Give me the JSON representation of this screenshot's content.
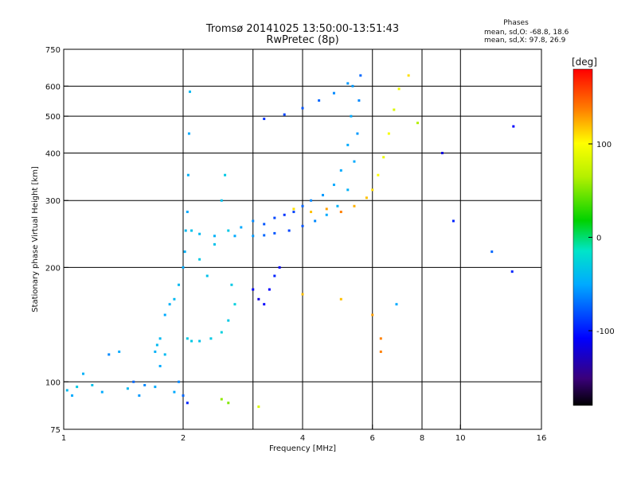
{
  "title_line1": "Tromsø 20141025 13:50:00-13:51:43",
  "title_line2": "RwPretec (8p)",
  "stats": {
    "heading": "Phases",
    "line_o": "mean, sd,O: -68.8, 18.6",
    "line_x": "mean, sd,X:  97.8, 26.9"
  },
  "colorbar": {
    "unit_label": "[deg]",
    "range": [
      -180,
      180
    ],
    "ticks": [
      {
        "value": 100,
        "label": "100"
      },
      {
        "value": 0,
        "label": "0"
      },
      {
        "value": -100,
        "label": "-100"
      }
    ]
  },
  "chart_data": {
    "type": "scatter",
    "title": "Tromsø 20141025 13:50:00-13:51:43",
    "subtitle": "RwPretec (8p)",
    "xlabel": "Frequency [MHz]",
    "ylabel": "Stationary phase Virtual Height [km]",
    "x_scale": "log",
    "y_scale": "log",
    "xlim": [
      1,
      16
    ],
    "ylim": [
      75,
      750
    ],
    "x_ticks": [
      {
        "value": 1,
        "label": "1"
      },
      {
        "value": 2,
        "label": "2"
      },
      {
        "value": 4,
        "label": "4"
      },
      {
        "value": 6,
        "label": "6"
      },
      {
        "value": 8,
        "label": "8"
      },
      {
        "value": 10,
        "label": "10"
      },
      {
        "value": 16,
        "label": "16"
      }
    ],
    "y_ticks": [
      {
        "value": 75,
        "label": "75"
      },
      {
        "value": 100,
        "label": "100"
      },
      {
        "value": 200,
        "label": "200"
      },
      {
        "value": 300,
        "label": "300"
      },
      {
        "value": 400,
        "label": "400"
      },
      {
        "value": 500,
        "label": "500"
      },
      {
        "value": 600,
        "label": "600"
      },
      {
        "value": 750,
        "label": "750"
      }
    ],
    "grid_x": [
      2,
      3,
      4,
      6,
      8,
      10
    ],
    "grid_y": [
      100,
      200,
      300,
      400,
      500,
      600
    ],
    "color_variable": "phase [deg]",
    "series": [
      {
        "points": [
          [
            1.02,
            95,
            -50
          ],
          [
            1.05,
            92,
            -60
          ],
          [
            1.08,
            97,
            -40
          ],
          [
            1.12,
            105,
            -55
          ],
          [
            1.18,
            98,
            -45
          ],
          [
            1.25,
            94,
            -60
          ],
          [
            1.3,
            118,
            -70
          ],
          [
            1.38,
            120,
            -60
          ],
          [
            1.45,
            96,
            -50
          ],
          [
            1.5,
            100,
            -80
          ],
          [
            1.55,
            92,
            -65
          ],
          [
            1.6,
            98,
            -70
          ],
          [
            1.7,
            97,
            -60
          ],
          [
            1.75,
            110,
            -60
          ],
          [
            1.8,
            118,
            -50
          ],
          [
            1.9,
            94,
            -60
          ],
          [
            1.95,
            100,
            -70
          ],
          [
            2.0,
            92,
            -80
          ],
          [
            2.05,
            88,
            -100
          ]
        ]
      },
      {
        "points": [
          [
            1.7,
            120,
            -55
          ],
          [
            1.72,
            125,
            -50
          ],
          [
            1.75,
            130,
            -50
          ],
          [
            1.8,
            150,
            -60
          ],
          [
            1.85,
            160,
            -55
          ],
          [
            1.9,
            165,
            -50
          ],
          [
            1.95,
            180,
            -50
          ],
          [
            2.0,
            200,
            -60
          ],
          [
            2.02,
            220,
            -55
          ],
          [
            2.03,
            250,
            -50
          ],
          [
            2.05,
            280,
            -60
          ],
          [
            2.06,
            350,
            -55
          ],
          [
            2.07,
            450,
            -60
          ],
          [
            2.08,
            580,
            -50
          ]
        ]
      },
      {
        "points": [
          [
            2.05,
            130,
            -40
          ],
          [
            2.1,
            128,
            -40
          ],
          [
            2.2,
            128,
            -45
          ],
          [
            2.35,
            130,
            -40
          ],
          [
            2.5,
            135,
            -35
          ],
          [
            2.6,
            145,
            -40
          ],
          [
            2.7,
            160,
            -35
          ],
          [
            2.65,
            180,
            -40
          ],
          [
            2.3,
            190,
            -45
          ],
          [
            2.2,
            210,
            -40
          ],
          [
            2.4,
            230,
            -45
          ],
          [
            2.6,
            250,
            -40
          ],
          [
            2.5,
            300,
            -45
          ],
          [
            2.55,
            350,
            -40
          ]
        ]
      },
      {
        "points": [
          [
            2.1,
            250,
            -45
          ],
          [
            2.2,
            245,
            -50
          ],
          [
            2.4,
            242,
            -55
          ],
          [
            2.7,
            242,
            -60
          ],
          [
            3.0,
            242,
            -65
          ],
          [
            3.2,
            243,
            -80
          ],
          [
            3.4,
            246,
            -85
          ],
          [
            3.7,
            250,
            -90
          ],
          [
            4.0,
            257,
            -85
          ],
          [
            4.3,
            265,
            -70
          ],
          [
            4.6,
            275,
            -60
          ],
          [
            4.9,
            290,
            -55
          ],
          [
            5.2,
            320,
            -55
          ],
          [
            5.4,
            380,
            -60
          ],
          [
            5.5,
            450,
            -65
          ],
          [
            5.55,
            550,
            -70
          ],
          [
            5.6,
            640,
            -80
          ]
        ]
      },
      {
        "points": [
          [
            2.8,
            255,
            -60
          ],
          [
            3.0,
            265,
            -70
          ],
          [
            3.2,
            260,
            -85
          ],
          [
            3.4,
            270,
            -90
          ],
          [
            3.6,
            275,
            -95
          ],
          [
            3.8,
            280,
            -90
          ],
          [
            4.0,
            290,
            -80
          ],
          [
            4.2,
            300,
            -70
          ],
          [
            4.5,
            310,
            -65
          ],
          [
            4.8,
            330,
            -60
          ],
          [
            5.0,
            360,
            -60
          ],
          [
            5.2,
            420,
            -60
          ],
          [
            5.3,
            500,
            -60
          ],
          [
            5.35,
            600,
            -65
          ]
        ]
      },
      {
        "points": [
          [
            3.0,
            175,
            -110
          ],
          [
            3.1,
            165,
            -120
          ],
          [
            3.2,
            160,
            -110
          ],
          [
            3.3,
            175,
            -110
          ],
          [
            3.4,
            190,
            -100
          ],
          [
            3.5,
            200,
            -110
          ]
        ]
      },
      {
        "points": [
          [
            3.2,
            492,
            -95
          ],
          [
            3.6,
            505,
            -90
          ],
          [
            4.0,
            525,
            -85
          ],
          [
            4.4,
            550,
            -80
          ],
          [
            4.8,
            575,
            -70
          ],
          [
            5.2,
            610,
            -65
          ]
        ]
      },
      {
        "points": [
          [
            3.8,
            285,
            110
          ],
          [
            4.2,
            280,
            120
          ],
          [
            4.6,
            285,
            130
          ],
          [
            5.0,
            280,
            140
          ],
          [
            5.4,
            290,
            125
          ],
          [
            5.8,
            305,
            120
          ],
          [
            6.0,
            320,
            110
          ],
          [
            6.2,
            350,
            100
          ],
          [
            6.4,
            390,
            90
          ],
          [
            6.6,
            450,
            95
          ],
          [
            6.8,
            520,
            80
          ],
          [
            7.0,
            590,
            90
          ],
          [
            7.4,
            640,
            110
          ],
          [
            7.8,
            480,
            60
          ]
        ]
      },
      {
        "points": [
          [
            2.5,
            90,
            50
          ],
          [
            2.6,
            88,
            45
          ],
          [
            3.1,
            86,
            80
          ],
          [
            4.0,
            170,
            120
          ],
          [
            5.0,
            165,
            120
          ],
          [
            6.0,
            150,
            130
          ],
          [
            6.3,
            130,
            140
          ],
          [
            6.3,
            120,
            140
          ],
          [
            6.9,
            160,
            -60
          ],
          [
            9.0,
            400,
            -120
          ],
          [
            9.6,
            265,
            -100
          ],
          [
            12.0,
            220,
            -80
          ],
          [
            13.5,
            195,
            -100
          ],
          [
            13.6,
            470,
            -110
          ]
        ]
      }
    ]
  }
}
